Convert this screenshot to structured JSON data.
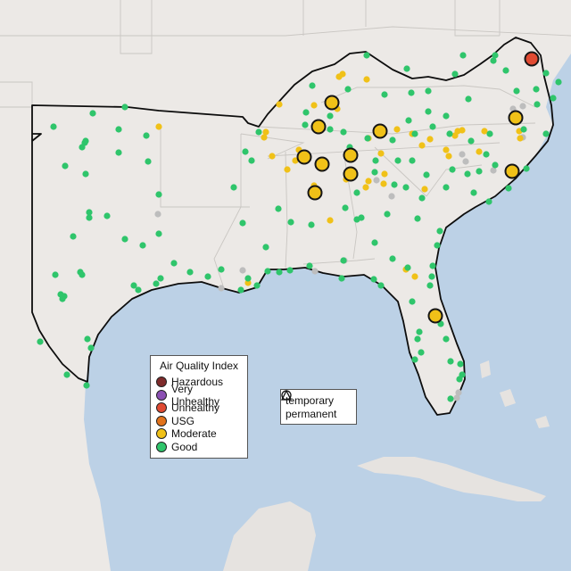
{
  "legend": {
    "title": "Air Quality Index",
    "items": [
      {
        "label": "Hazardous",
        "color": "#7e2b2b"
      },
      {
        "label": "Very Unhealthy",
        "color": "#8b4fb3"
      },
      {
        "label": "Unhealthy",
        "color": "#e04a32"
      },
      {
        "label": "USG",
        "color": "#e2731c"
      },
      {
        "label": "Moderate",
        "color": "#f0c118"
      },
      {
        "label": "Good",
        "color": "#2fc56b"
      }
    ]
  },
  "shape_legend": {
    "temporary": "temporary",
    "permanent": "permanent"
  },
  "colors": {
    "ocean": "#bcd1e6",
    "land": "#ece9e6",
    "mexico": "#e6e3e0",
    "border": "#0d0d0d",
    "inactive_site": "#bdbdbd"
  },
  "map_icons": {
    "large_site": "circle-marker",
    "small_site": "dot-marker"
  }
}
